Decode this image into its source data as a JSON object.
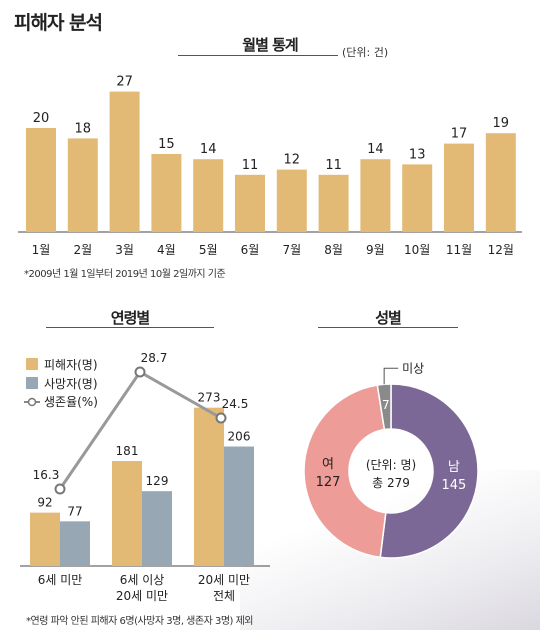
{
  "page": {
    "title": "피해자 분석"
  },
  "monthly": {
    "title": "월별 통계",
    "unit": "(단위: 건)",
    "note": "*2009년 1월 1일부터 2019년 10월 2일까지 기준"
  },
  "age": {
    "title": "연령별",
    "note": "*연령 파악 안된 피해자 6명(사망자 3명, 생존자 3명) 제외"
  },
  "gender": {
    "title": "성별"
  },
  "chart_data": [
    {
      "type": "bar",
      "title": "월별 통계",
      "unit": "(단위: 건)",
      "categories": [
        "1월",
        "2월",
        "3월",
        "4월",
        "5월",
        "6월",
        "7월",
        "8월",
        "9월",
        "10월",
        "11월",
        "12월"
      ],
      "values": [
        20,
        18,
        27,
        15,
        14,
        11,
        12,
        11,
        14,
        13,
        17,
        19
      ],
      "color": "#E2BA76"
    },
    {
      "type": "bar",
      "title": "연령별",
      "categories": [
        [
          "6세 미만"
        ],
        [
          "6세 이상",
          "20세 미만"
        ],
        [
          "20세 미만",
          "전체"
        ]
      ],
      "series": [
        {
          "name": "피해자(명)",
          "values": [
            92,
            181,
            273
          ],
          "color": "#E2BA76"
        },
        {
          "name": "사망자(명)",
          "values": [
            77,
            129,
            206
          ],
          "color": "#97A7B3"
        }
      ],
      "line_series": {
        "name": "생존율(%)",
        "values": [
          16.3,
          28.7,
          24.5
        ],
        "color": "#999999"
      },
      "legend": "top-left"
    },
    {
      "type": "pie",
      "title": "성별",
      "center_label": [
        "(단위: 명)",
        "총 279"
      ],
      "slices": [
        {
          "label": "남",
          "value": 145,
          "color": "#7B6897"
        },
        {
          "label": "여",
          "value": 127,
          "color": "#EE9C98"
        },
        {
          "label": "미상",
          "value": 7,
          "color": "#8A8A8A"
        }
      ]
    }
  ]
}
